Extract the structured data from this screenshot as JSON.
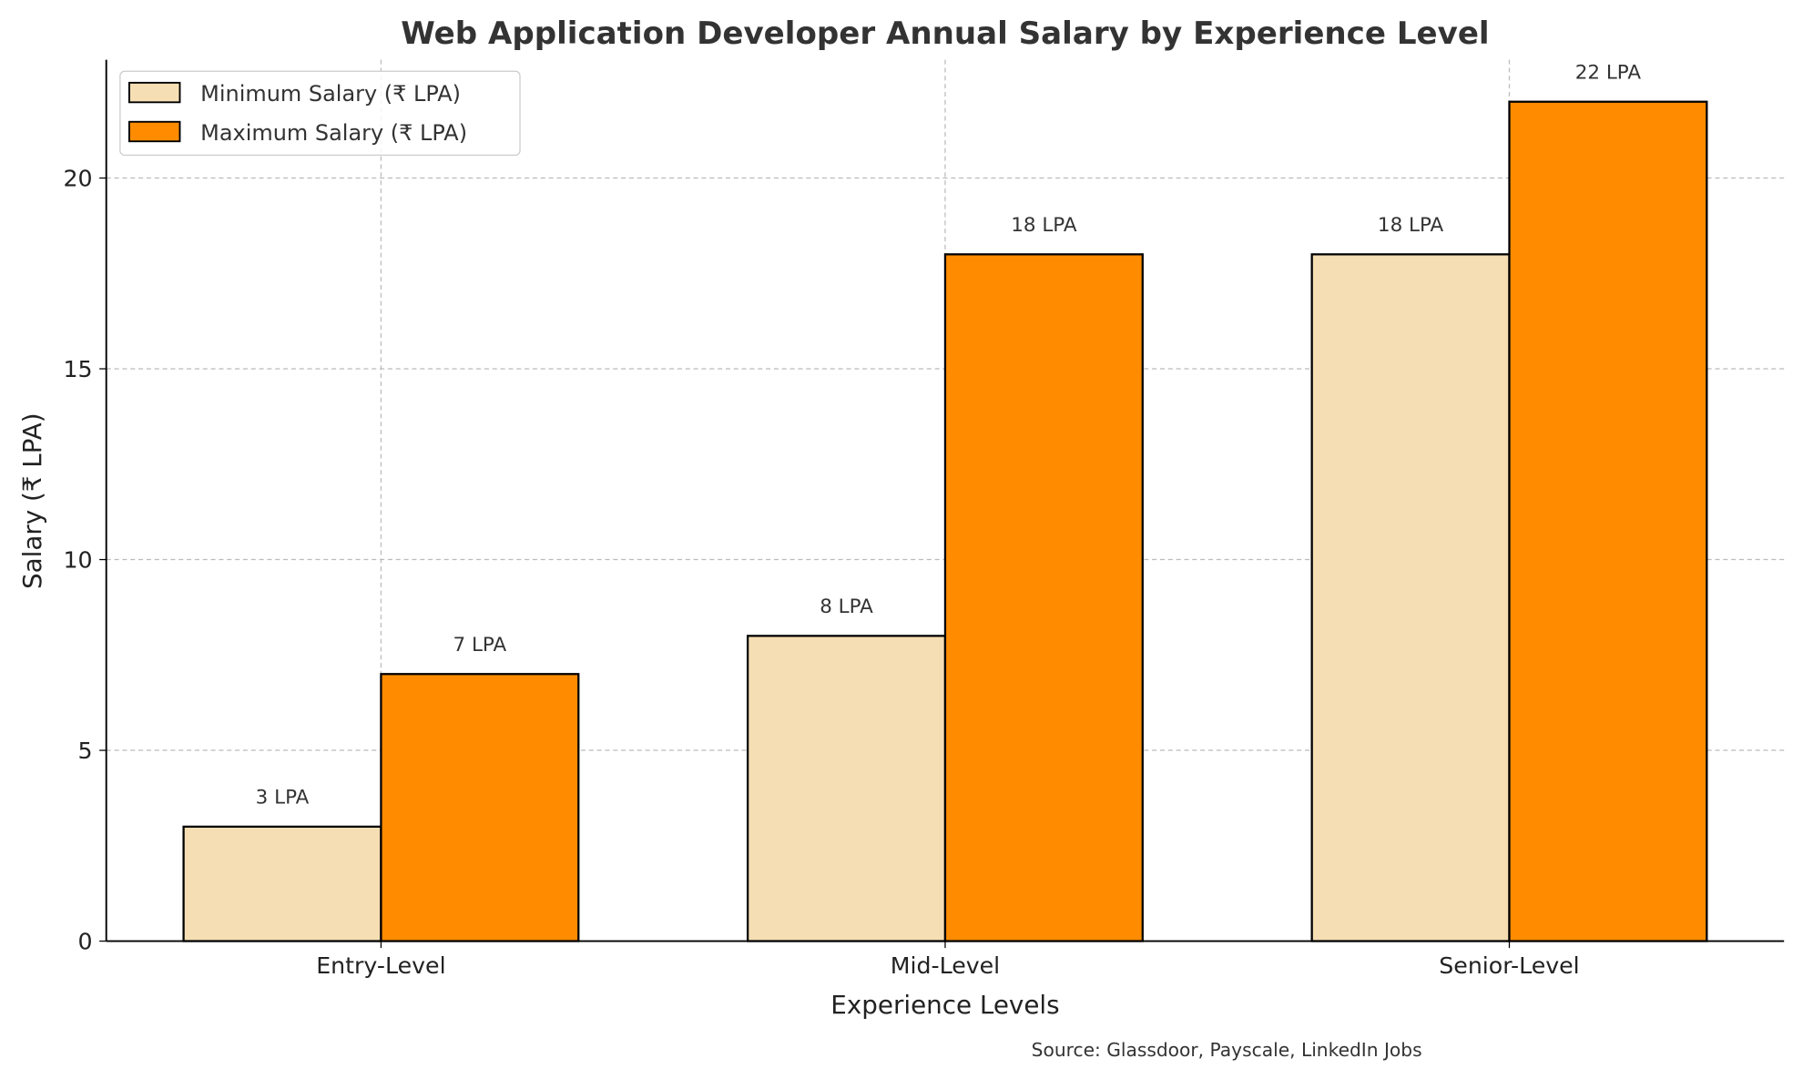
{
  "chart_data": {
    "type": "bar",
    "title": "Web Application Developer Annual Salary by Experience Level",
    "xlabel": "Experience Levels",
    "ylabel": "Salary (₹ LPA)",
    "categories": [
      "Entry-Level",
      "Mid-Level",
      "Senior-Level"
    ],
    "series": [
      {
        "name": "Minimum Salary (₹ LPA)",
        "values": [
          3,
          8,
          18
        ],
        "labels": [
          "3 LPA",
          "8 LPA",
          "18 LPA"
        ],
        "color": "#F5DEB3"
      },
      {
        "name": "Maximum Salary (₹ LPA)",
        "values": [
          7,
          18,
          22
        ],
        "labels": [
          "7 LPA",
          "18 LPA",
          "22 LPA"
        ],
        "color": "#FF8C00"
      }
    ],
    "ylim": [
      0,
      23.1
    ],
    "yticks": [
      0,
      5,
      10,
      15,
      20
    ],
    "grid": true,
    "legend": "top-left",
    "source": "Source: Glassdoor, Payscale, LinkedIn Jobs"
  }
}
